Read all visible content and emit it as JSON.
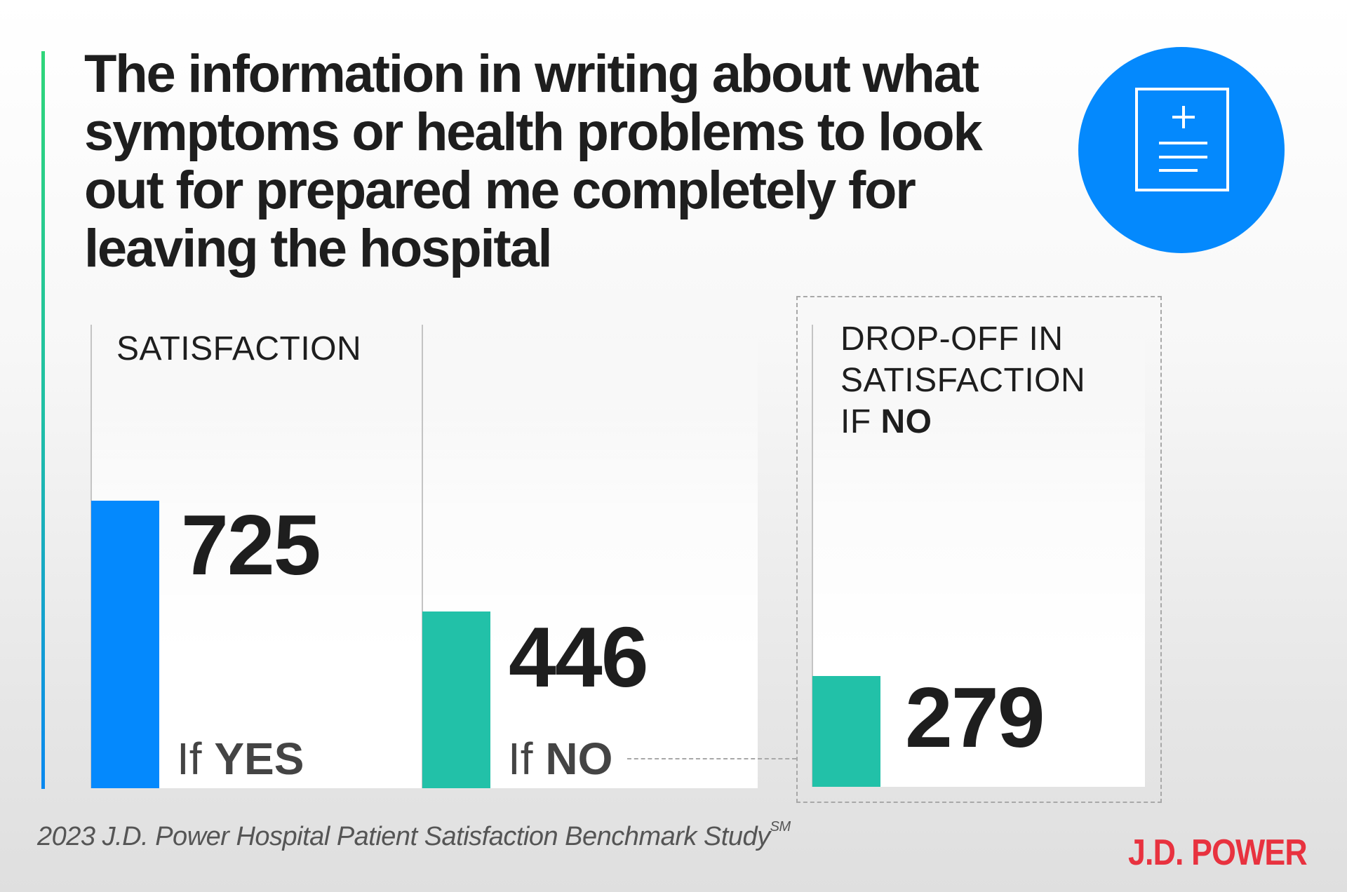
{
  "title_lines": [
    "The information in writing about what",
    "symptoms or health problems to look",
    "out for prepared me completely for",
    "leaving the hospital"
  ],
  "icon": "medical-document-icon",
  "colors": {
    "blue": "#0489fd",
    "teal": "#22c1a8",
    "brand_red": "#e8323f",
    "accent_green": "#2fd67a"
  },
  "satisfaction_label": "SATISFACTION",
  "dropoff_label": {
    "line1": "DROP-OFF IN",
    "line2": "SATISFACTION",
    "line3_prefix": "IF ",
    "line3_bold": "NO"
  },
  "bars": [
    {
      "prefix": "If ",
      "bold": "YES",
      "value": "725"
    },
    {
      "prefix": "If ",
      "bold": "NO",
      "value": "446"
    },
    {
      "value": "279"
    }
  ],
  "chart_data": {
    "type": "bar",
    "title": "The information in writing about what symptoms or health problems to look out for prepared me completely for leaving the hospital",
    "categories": [
      "If YES",
      "If NO",
      "Drop-off in satisfaction if NO"
    ],
    "values": [
      725,
      446,
      279
    ],
    "ylabel": "SATISFACTION"
  },
  "footer": {
    "source": "2023 J.D. Power Hospital Patient Satisfaction Benchmark Study",
    "mark": "SM"
  },
  "logo": "J.D. POWER"
}
